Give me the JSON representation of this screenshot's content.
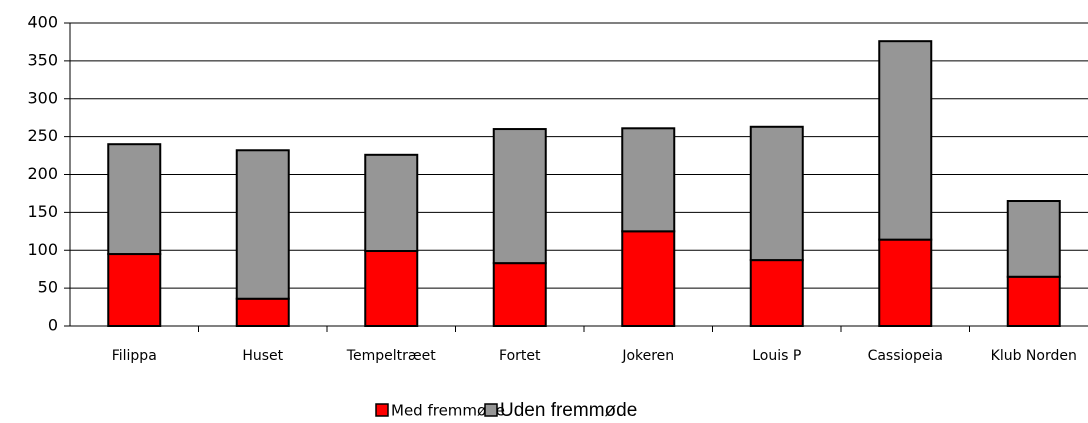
{
  "chart_data": {
    "type": "stacked_bar",
    "categories": [
      "Filippa",
      "Huset",
      "Tempeltræet",
      "Fortet",
      "Jokeren",
      "Louis P",
      "Cassiopeia",
      "Klub Norden"
    ],
    "series": [
      {
        "name": "Med fremmøde",
        "color": "#ff0000",
        "values": [
          95,
          36,
          99,
          83,
          125,
          87,
          114,
          65
        ]
      },
      {
        "name": "Uden fremmøde",
        "color": "#969696",
        "values": [
          145,
          196,
          127,
          177,
          136,
          176,
          262,
          100
        ]
      }
    ],
    "ylim": [
      0,
      400
    ],
    "yticks": [
      0,
      50,
      100,
      150,
      200,
      250,
      300,
      350,
      400
    ],
    "grid": true,
    "legend": "bottom"
  }
}
